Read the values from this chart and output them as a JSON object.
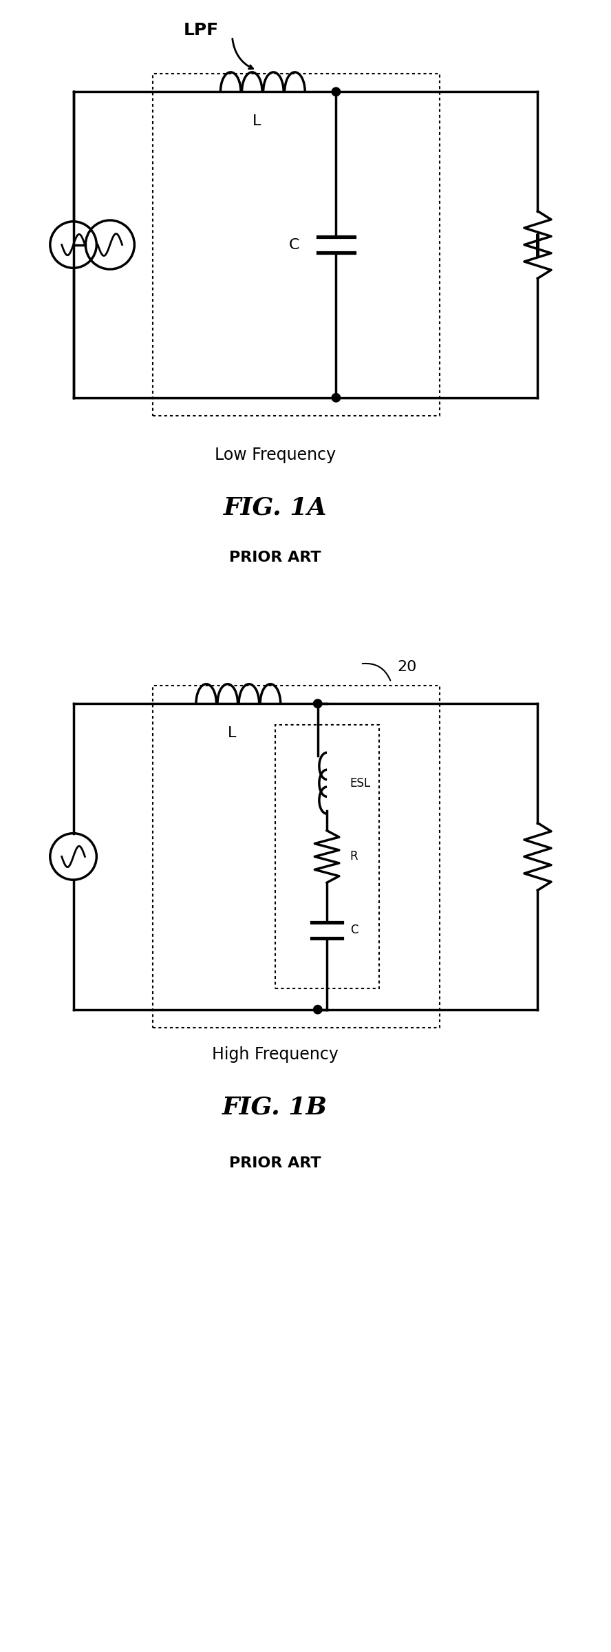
{
  "fig_width": 8.88,
  "fig_height": 24.0,
  "background_color": "#ffffff",
  "fig1a": {
    "title": "FIG. 1A",
    "subtitle": "PRIOR ART",
    "caption": "Low Frequency",
    "lpf_label": "LPF"
  },
  "fig1b": {
    "title": "FIG. 1B",
    "subtitle": "PRIOR ART",
    "caption": "High Frequency",
    "label": "20"
  }
}
